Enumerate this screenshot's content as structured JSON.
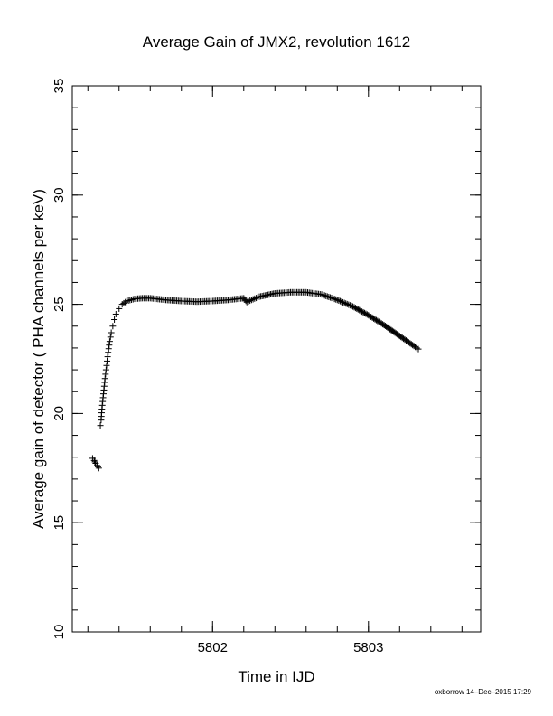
{
  "chart_data": {
    "type": "scatter",
    "title": "Average Gain of JMX2, revolution 1612",
    "xlabel": "Time in IJD",
    "ylabel": "Average gain of detector ( PHA channels per keV)",
    "xlim": [
      5801.1,
      5803.72
    ],
    "ylim": [
      10,
      35
    ],
    "x_ticks": [
      {
        "value": 5802,
        "label": "5802"
      },
      {
        "value": 5803,
        "label": "5803"
      }
    ],
    "y_ticks": [
      {
        "value": 10,
        "label": "10"
      },
      {
        "value": 15,
        "label": "15"
      },
      {
        "value": 20,
        "label": "20"
      },
      {
        "value": 25,
        "label": "25"
      },
      {
        "value": 30,
        "label": "30"
      },
      {
        "value": 35,
        "label": "35"
      }
    ],
    "x_minor_step": 0.2,
    "y_minor_step": 1,
    "grid": false,
    "marker": "plus",
    "series": [
      {
        "x": [
          5801.23,
          5801.24,
          5801.25,
          5801.26,
          5801.27,
          5801.28,
          5801.285,
          5801.29,
          5801.3,
          5801.31,
          5801.32,
          5801.33,
          5801.34,
          5801.35,
          5801.36,
          5801.37,
          5801.38,
          5801.4,
          5801.42,
          5801.45,
          5801.5,
          5801.55,
          5801.6,
          5801.7,
          5801.8,
          5801.9,
          5802.0,
          5802.1,
          5802.2,
          5802.22,
          5802.25,
          5802.3,
          5802.4,
          5802.5,
          5802.6,
          5802.7,
          5802.8,
          5802.9,
          5803.0,
          5803.1,
          5803.2,
          5803.25,
          5803.3,
          5803.32
        ],
        "y": [
          17.95,
          17.85,
          17.72,
          17.62,
          17.5,
          19.45,
          19.7,
          20.2,
          20.9,
          21.6,
          22.2,
          22.8,
          23.3,
          23.7,
          24.0,
          24.3,
          24.55,
          24.8,
          25.0,
          25.15,
          25.25,
          25.28,
          25.28,
          25.2,
          25.15,
          25.12,
          25.15,
          25.2,
          25.28,
          25.1,
          25.2,
          25.35,
          25.5,
          25.55,
          25.55,
          25.45,
          25.2,
          24.9,
          24.5,
          24.05,
          23.55,
          23.3,
          23.05,
          22.95
        ]
      }
    ]
  },
  "footer": {
    "credit": "oxborrow 14–Dec–2015 17:29"
  }
}
